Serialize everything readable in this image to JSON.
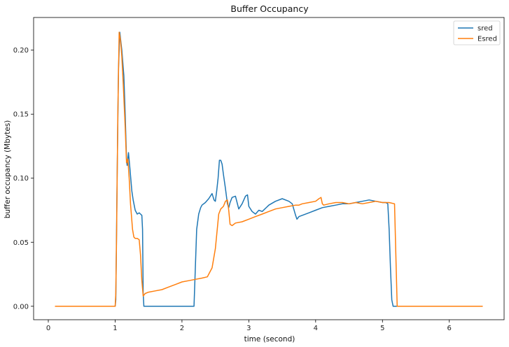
{
  "chart_data": {
    "type": "line",
    "title": "Buffer Occupancy",
    "xlabel": "time (second)",
    "ylabel": "buffer occupancy (Mbytes)",
    "xlim": [
      -0.22,
      6.82
    ],
    "ylim": [
      -0.0105,
      0.2255
    ],
    "xticks": [
      0,
      1,
      2,
      3,
      4,
      5,
      6
    ],
    "yticks": [
      0.0,
      0.05,
      0.1,
      0.15,
      0.2
    ],
    "ytick_labels": [
      "0.00",
      "0.05",
      "0.10",
      "0.15",
      "0.20"
    ],
    "grid": false,
    "legend_position": "top-right",
    "series": [
      {
        "name": "sred",
        "color": "#1f77b4",
        "x": [
          0.1,
          1.0,
          1.01,
          1.03,
          1.05,
          1.07,
          1.1,
          1.13,
          1.15,
          1.17,
          1.18,
          1.2,
          1.22,
          1.25,
          1.27,
          1.3,
          1.33,
          1.36,
          1.38,
          1.4,
          1.41,
          1.42,
          1.43,
          1.5,
          2.0,
          2.18,
          2.2,
          2.22,
          2.25,
          2.28,
          2.3,
          2.35,
          2.4,
          2.45,
          2.48,
          2.5,
          2.52,
          2.54,
          2.56,
          2.58,
          2.6,
          2.62,
          2.65,
          2.68,
          2.7,
          2.72,
          2.75,
          2.8,
          2.85,
          2.9,
          2.95,
          2.98,
          3.0,
          3.05,
          3.1,
          3.15,
          3.2,
          3.3,
          3.4,
          3.5,
          3.6,
          3.65,
          3.7,
          3.72,
          3.75,
          3.8,
          3.9,
          4.0,
          4.1,
          4.2,
          4.3,
          4.4,
          4.5,
          4.6,
          4.7,
          4.8,
          4.9,
          5.0,
          5.05,
          5.08,
          5.1,
          5.12,
          5.14,
          5.16,
          5.2,
          5.5,
          6.0,
          6.5
        ],
        "y": [
          0.0,
          0.0,
          0.005,
          0.1,
          0.185,
          0.214,
          0.2,
          0.18,
          0.15,
          0.115,
          0.11,
          0.12,
          0.108,
          0.09,
          0.083,
          0.075,
          0.072,
          0.073,
          0.072,
          0.071,
          0.06,
          0.01,
          0.0,
          0.0,
          0.0,
          0.0,
          0.03,
          0.06,
          0.072,
          0.077,
          0.079,
          0.081,
          0.084,
          0.088,
          0.083,
          0.082,
          0.09,
          0.1,
          0.114,
          0.114,
          0.111,
          0.103,
          0.092,
          0.08,
          0.077,
          0.081,
          0.085,
          0.086,
          0.076,
          0.08,
          0.086,
          0.087,
          0.078,
          0.074,
          0.072,
          0.075,
          0.074,
          0.079,
          0.082,
          0.084,
          0.082,
          0.08,
          0.071,
          0.068,
          0.07,
          0.071,
          0.073,
          0.075,
          0.077,
          0.078,
          0.079,
          0.08,
          0.08,
          0.081,
          0.082,
          0.083,
          0.082,
          0.081,
          0.081,
          0.08,
          0.06,
          0.03,
          0.005,
          0.0,
          0.0,
          0.0,
          0.0,
          0.0
        ]
      },
      {
        "name": "Esred",
        "color": "#ff7f0e",
        "x": [
          0.1,
          1.0,
          1.01,
          1.02,
          1.04,
          1.06,
          1.08,
          1.1,
          1.12,
          1.15,
          1.17,
          1.19,
          1.21,
          1.23,
          1.26,
          1.28,
          1.3,
          1.33,
          1.36,
          1.38,
          1.4,
          1.42,
          1.45,
          1.5,
          1.6,
          1.7,
          1.8,
          1.9,
          2.0,
          2.1,
          2.2,
          2.3,
          2.38,
          2.4,
          2.45,
          2.5,
          2.55,
          2.58,
          2.6,
          2.62,
          2.65,
          2.68,
          2.7,
          2.72,
          2.75,
          2.8,
          2.9,
          3.0,
          3.1,
          3.2,
          3.3,
          3.4,
          3.5,
          3.6,
          3.7,
          3.75,
          3.8,
          3.9,
          4.0,
          4.05,
          4.08,
          4.1,
          4.12,
          4.2,
          4.3,
          4.4,
          4.5,
          4.6,
          4.7,
          4.8,
          4.9,
          5.0,
          5.1,
          5.18,
          5.2,
          5.22,
          5.25,
          5.5,
          6.0,
          6.5
        ],
        "y": [
          0.0,
          0.0,
          0.01,
          0.05,
          0.15,
          0.214,
          0.208,
          0.195,
          0.175,
          0.14,
          0.112,
          0.115,
          0.1,
          0.08,
          0.06,
          0.054,
          0.053,
          0.053,
          0.052,
          0.04,
          0.02,
          0.008,
          0.01,
          0.011,
          0.012,
          0.013,
          0.015,
          0.017,
          0.019,
          0.02,
          0.021,
          0.022,
          0.023,
          0.025,
          0.03,
          0.045,
          0.072,
          0.076,
          0.077,
          0.078,
          0.082,
          0.083,
          0.075,
          0.064,
          0.063,
          0.065,
          0.066,
          0.068,
          0.07,
          0.072,
          0.074,
          0.076,
          0.077,
          0.078,
          0.079,
          0.079,
          0.08,
          0.081,
          0.082,
          0.084,
          0.085,
          0.08,
          0.079,
          0.08,
          0.081,
          0.081,
          0.08,
          0.081,
          0.08,
          0.081,
          0.082,
          0.081,
          0.081,
          0.08,
          0.04,
          0.0,
          0.0,
          0.0,
          0.0,
          0.0
        ]
      }
    ]
  }
}
